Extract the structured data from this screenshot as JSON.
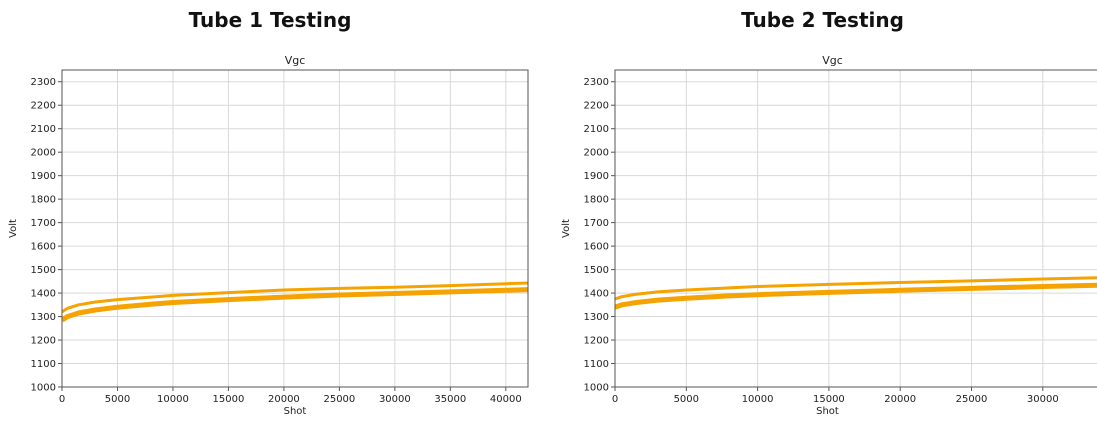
{
  "chart_data": [
    {
      "type": "line",
      "heading": "Tube 1 Testing",
      "title": "Vgc",
      "xlabel": "Shot",
      "ylabel": "Volt",
      "xlim": [
        0,
        42000
      ],
      "ylim": [
        1000,
        2350
      ],
      "xticks": [
        0,
        5000,
        10000,
        15000,
        20000,
        25000,
        30000,
        35000,
        40000
      ],
      "yticks": [
        1000,
        1100,
        1200,
        1300,
        1400,
        1500,
        1600,
        1700,
        1800,
        1900,
        2000,
        2100,
        2200,
        2300
      ],
      "grid": true,
      "series_color": "#f5a300",
      "series": [
        {
          "x": [
            0,
            500,
            1500,
            3000,
            5000,
            8000,
            10000,
            15000,
            20000,
            25000,
            30000,
            35000,
            40000,
            42000
          ],
          "y": [
            1320,
            1335,
            1350,
            1362,
            1372,
            1383,
            1390,
            1402,
            1413,
            1420,
            1425,
            1432,
            1440,
            1443
          ]
        },
        {
          "x": [
            0,
            500,
            1500,
            3000,
            5000,
            8000,
            10000,
            15000,
            20000,
            25000,
            30000,
            35000,
            40000,
            42000
          ],
          "y": [
            1285,
            1300,
            1315,
            1328,
            1340,
            1352,
            1360,
            1372,
            1383,
            1392,
            1398,
            1405,
            1412,
            1415
          ]
        }
      ]
    },
    {
      "type": "line",
      "heading": "Tube 2 Testing",
      "title": "Vgc",
      "xlabel": "Shot",
      "ylabel": "Volt",
      "xlim": [
        0,
        33800
      ],
      "ylim": [
        1000,
        2350
      ],
      "xticks": [
        0,
        5000,
        10000,
        15000,
        20000,
        25000,
        30000
      ],
      "yticks": [
        1000,
        1100,
        1200,
        1300,
        1400,
        1500,
        1600,
        1700,
        1800,
        1900,
        2000,
        2100,
        2200,
        2300
      ],
      "grid": true,
      "series_color": "#f5a300",
      "series": [
        {
          "x": [
            0,
            500,
            1500,
            3000,
            5000,
            8000,
            10000,
            15000,
            20000,
            25000,
            30000,
            33800
          ],
          "y": [
            1375,
            1385,
            1395,
            1405,
            1413,
            1422,
            1428,
            1437,
            1445,
            1452,
            1460,
            1465
          ]
        },
        {
          "x": [
            0,
            500,
            1500,
            3000,
            5000,
            8000,
            10000,
            15000,
            20000,
            25000,
            30000,
            33800
          ],
          "y": [
            1340,
            1350,
            1360,
            1370,
            1378,
            1388,
            1393,
            1403,
            1412,
            1420,
            1428,
            1433
          ]
        }
      ]
    }
  ]
}
